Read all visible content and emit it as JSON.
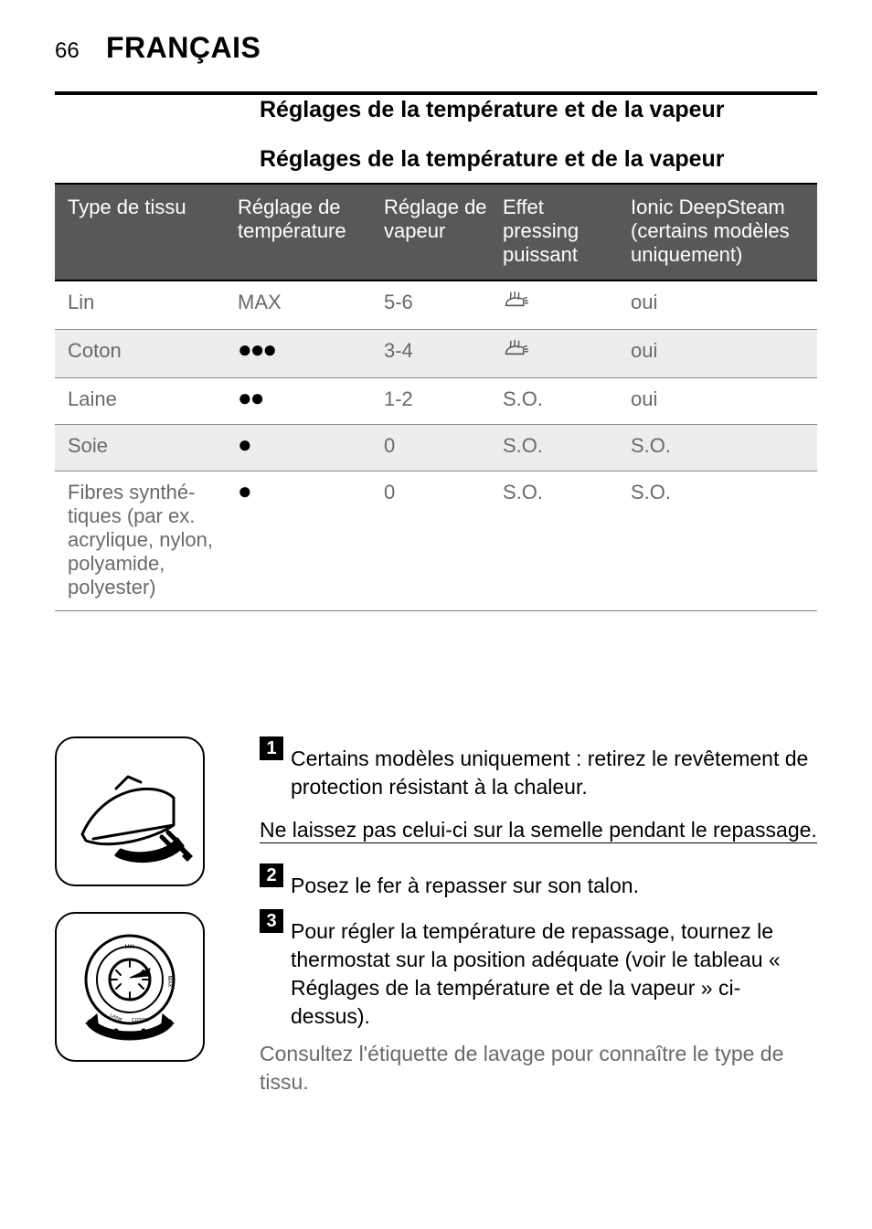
{
  "page": {
    "number": "66",
    "language": "FRANÇAIS"
  },
  "section": {
    "heading": "Réglages de la température et de la vapeur",
    "table_caption": "Réglages de la température et de la vapeur"
  },
  "table": {
    "columns": {
      "c1": "Type de tissu",
      "c2": "Réglage de tempéra­ture",
      "c3": "Réglage de va­peur",
      "c4": "Effet pressing puissant",
      "c5": "Ionic DeepS­team (certains modèles uni­quement)"
    },
    "rows": [
      {
        "fabric": "Lin",
        "temp_text": "MAX",
        "temp_dots": "",
        "steam": "5-6",
        "shot": "icon",
        "ionic": "oui",
        "alt": false
      },
      {
        "fabric": "Coton",
        "temp_text": "",
        "temp_dots": "●●●",
        "steam": "3-4",
        "shot": "icon",
        "ionic": "oui",
        "alt": true
      },
      {
        "fabric": "Laine",
        "temp_text": "",
        "temp_dots": "●●",
        "steam": "1-2",
        "shot": "S.O.",
        "ionic": "oui",
        "alt": false
      },
      {
        "fabric": "Soie",
        "temp_text": "",
        "temp_dots": "●",
        "steam": "0",
        "shot": "S.O.",
        "ionic": "S.O.",
        "alt": true
      },
      {
        "fabric": "Fibres synthé­tiques (par ex. acrylique, ny­lon, polyamide, polyester)",
        "temp_text": "",
        "temp_dots": "●",
        "steam": "0",
        "shot": "S.O.",
        "ionic": "S.O.",
        "alt": false
      }
    ]
  },
  "instructions": {
    "step1_num": "1",
    "step1": "Certains modèles uniquement : retirez le revêtement de protection résistant à la chaleur.",
    "note": "Ne laissez pas celui-ci sur la semelle pendant le repassage.",
    "step2_num": "2",
    "step2": "Posez le fer à repasser sur son talon.",
    "step3_num": "3",
    "step3": "Pour régler la température de repassage, tournez le thermostat sur la position adéquate (voir le tableau « Réglages de la température et de la vapeur » ci-dessus).",
    "follow": "Consultez l'étiquette de lavage pour connaître le type de tissu."
  }
}
